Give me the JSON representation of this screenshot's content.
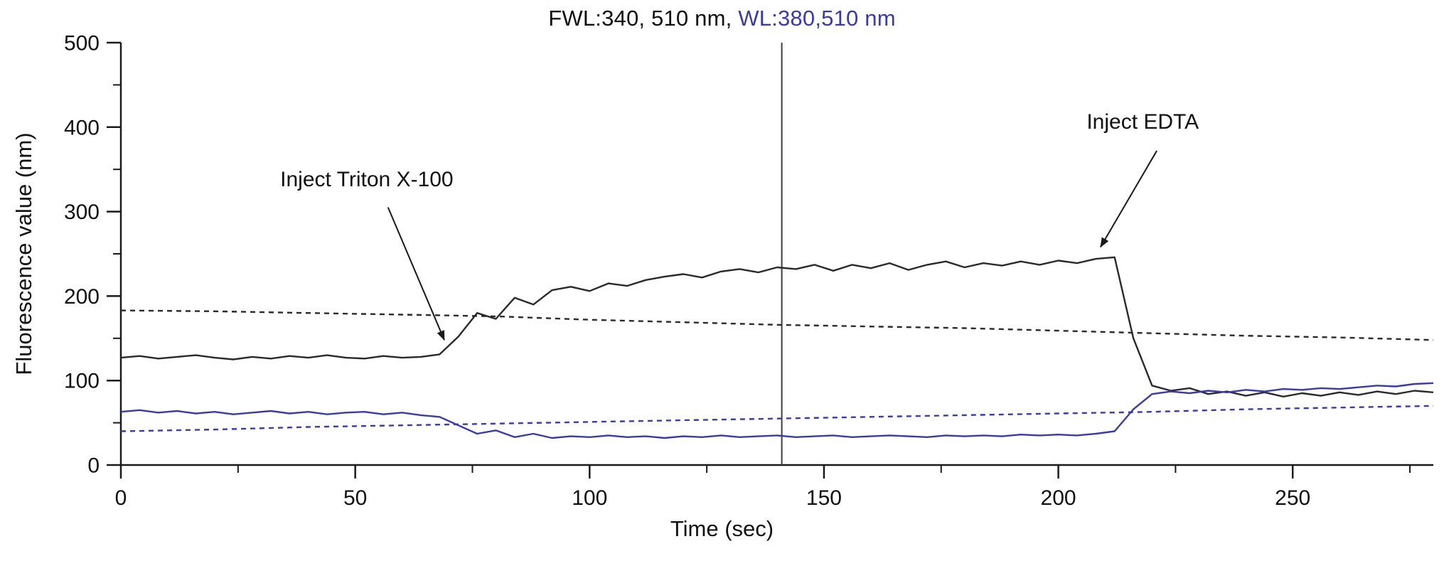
{
  "chart_data": {
    "type": "line",
    "title_main": "FWL:340, 510 nm, ",
    "title_secondary": "WL:380,510 nm",
    "xlabel": "Time (sec)",
    "ylabel": "Fluorescence value (nm)",
    "xlim": [
      0,
      280
    ],
    "ylim": [
      0,
      500
    ],
    "xticks": [
      0,
      50,
      100,
      150,
      200,
      250
    ],
    "xminor": [
      25,
      75,
      125,
      175,
      225,
      275
    ],
    "yticks": [
      0,
      100,
      200,
      300,
      400,
      500
    ],
    "yminor": [
      50,
      150,
      250,
      350,
      450
    ],
    "cursor_x": 141,
    "grid": false,
    "legend": "none",
    "colors": {
      "black": "#2a2a2a",
      "blue": "#3b3ba4",
      "axis": "#1a1a1a",
      "cursor": "#3d3d3d"
    },
    "series": [
      {
        "name": "FWL 340,510 nm solid trace",
        "color_key": "black",
        "dash": null,
        "points": [
          [
            0,
            127
          ],
          [
            4,
            129
          ],
          [
            8,
            126
          ],
          [
            12,
            128
          ],
          [
            16,
            130
          ],
          [
            20,
            127
          ],
          [
            24,
            125
          ],
          [
            28,
            128
          ],
          [
            32,
            126
          ],
          [
            36,
            129
          ],
          [
            40,
            127
          ],
          [
            44,
            130
          ],
          [
            48,
            127
          ],
          [
            52,
            126
          ],
          [
            56,
            129
          ],
          [
            60,
            127
          ],
          [
            64,
            128
          ],
          [
            68,
            131
          ],
          [
            72,
            152
          ],
          [
            76,
            180
          ],
          [
            80,
            173
          ],
          [
            84,
            198
          ],
          [
            88,
            190
          ],
          [
            92,
            207
          ],
          [
            96,
            211
          ],
          [
            100,
            206
          ],
          [
            104,
            215
          ],
          [
            108,
            212
          ],
          [
            112,
            219
          ],
          [
            116,
            223
          ],
          [
            120,
            226
          ],
          [
            124,
            222
          ],
          [
            128,
            229
          ],
          [
            132,
            232
          ],
          [
            136,
            228
          ],
          [
            140,
            234
          ],
          [
            144,
            232
          ],
          [
            148,
            237
          ],
          [
            152,
            230
          ],
          [
            156,
            237
          ],
          [
            160,
            233
          ],
          [
            164,
            239
          ],
          [
            168,
            231
          ],
          [
            172,
            237
          ],
          [
            176,
            241
          ],
          [
            180,
            234
          ],
          [
            184,
            239
          ],
          [
            188,
            236
          ],
          [
            192,
            241
          ],
          [
            196,
            237
          ],
          [
            200,
            242
          ],
          [
            204,
            239
          ],
          [
            208,
            244
          ],
          [
            212,
            246
          ],
          [
            216,
            150
          ],
          [
            220,
            94
          ],
          [
            224,
            88
          ],
          [
            228,
            91
          ],
          [
            232,
            84
          ],
          [
            236,
            87
          ],
          [
            240,
            82
          ],
          [
            244,
            86
          ],
          [
            248,
            81
          ],
          [
            252,
            85
          ],
          [
            256,
            82
          ],
          [
            260,
            86
          ],
          [
            264,
            83
          ],
          [
            268,
            87
          ],
          [
            272,
            84
          ],
          [
            276,
            88
          ],
          [
            280,
            86
          ]
        ]
      },
      {
        "name": "FWL 340,510 nm dashed reference trace",
        "color_key": "black",
        "dash": "7,6",
        "points": [
          [
            0,
            183
          ],
          [
            20,
            182
          ],
          [
            40,
            180
          ],
          [
            60,
            178
          ],
          [
            80,
            176
          ],
          [
            100,
            172
          ],
          [
            120,
            169
          ],
          [
            140,
            166
          ],
          [
            160,
            164
          ],
          [
            180,
            162
          ],
          [
            200,
            159
          ],
          [
            220,
            156
          ],
          [
            240,
            153
          ],
          [
            260,
            151
          ],
          [
            280,
            148
          ]
        ]
      },
      {
        "name": "WL 380,510 nm solid trace",
        "color_key": "blue",
        "dash": null,
        "points": [
          [
            0,
            63
          ],
          [
            4,
            65
          ],
          [
            8,
            62
          ],
          [
            12,
            64
          ],
          [
            16,
            61
          ],
          [
            20,
            63
          ],
          [
            24,
            60
          ],
          [
            28,
            62
          ],
          [
            32,
            64
          ],
          [
            36,
            61
          ],
          [
            40,
            63
          ],
          [
            44,
            60
          ],
          [
            48,
            62
          ],
          [
            52,
            63
          ],
          [
            56,
            60
          ],
          [
            60,
            62
          ],
          [
            64,
            59
          ],
          [
            68,
            57
          ],
          [
            72,
            47
          ],
          [
            76,
            37
          ],
          [
            80,
            41
          ],
          [
            84,
            33
          ],
          [
            88,
            37
          ],
          [
            92,
            32
          ],
          [
            96,
            34
          ],
          [
            100,
            33
          ],
          [
            104,
            35
          ],
          [
            108,
            33
          ],
          [
            112,
            34
          ],
          [
            116,
            32
          ],
          [
            120,
            34
          ],
          [
            124,
            33
          ],
          [
            128,
            35
          ],
          [
            132,
            33
          ],
          [
            136,
            34
          ],
          [
            140,
            35
          ],
          [
            144,
            33
          ],
          [
            148,
            34
          ],
          [
            152,
            35
          ],
          [
            156,
            33
          ],
          [
            160,
            34
          ],
          [
            164,
            35
          ],
          [
            168,
            34
          ],
          [
            172,
            33
          ],
          [
            176,
            35
          ],
          [
            180,
            34
          ],
          [
            184,
            35
          ],
          [
            188,
            34
          ],
          [
            192,
            36
          ],
          [
            196,
            35
          ],
          [
            200,
            36
          ],
          [
            204,
            35
          ],
          [
            208,
            37
          ],
          [
            212,
            40
          ],
          [
            216,
            66
          ],
          [
            220,
            84
          ],
          [
            224,
            87
          ],
          [
            228,
            85
          ],
          [
            232,
            88
          ],
          [
            236,
            86
          ],
          [
            240,
            89
          ],
          [
            244,
            87
          ],
          [
            248,
            90
          ],
          [
            252,
            89
          ],
          [
            256,
            91
          ],
          [
            260,
            90
          ],
          [
            264,
            92
          ],
          [
            268,
            94
          ],
          [
            272,
            93
          ],
          [
            276,
            96
          ],
          [
            280,
            97
          ]
        ]
      },
      {
        "name": "WL 380,510 nm dashed reference trace",
        "color_key": "blue",
        "dash": "7,6",
        "points": [
          [
            0,
            40
          ],
          [
            20,
            42
          ],
          [
            40,
            45
          ],
          [
            60,
            47
          ],
          [
            80,
            49
          ],
          [
            100,
            51
          ],
          [
            120,
            53
          ],
          [
            140,
            55
          ],
          [
            160,
            57
          ],
          [
            180,
            59
          ],
          [
            200,
            61
          ],
          [
            220,
            63
          ],
          [
            240,
            66
          ],
          [
            260,
            68
          ],
          [
            280,
            70
          ]
        ]
      }
    ],
    "annotations": [
      {
        "label": "Inject Triton X-100",
        "text_pos": [
          34,
          330
        ],
        "anchor": "start",
        "arrow_from": [
          57,
          305
        ],
        "arrow_to": [
          69,
          148
        ]
      },
      {
        "label": "Inject EDTA",
        "text_pos": [
          218,
          398
        ],
        "anchor": "middle",
        "arrow_from": [
          221,
          372
        ],
        "arrow_to": [
          209,
          258
        ]
      }
    ]
  }
}
